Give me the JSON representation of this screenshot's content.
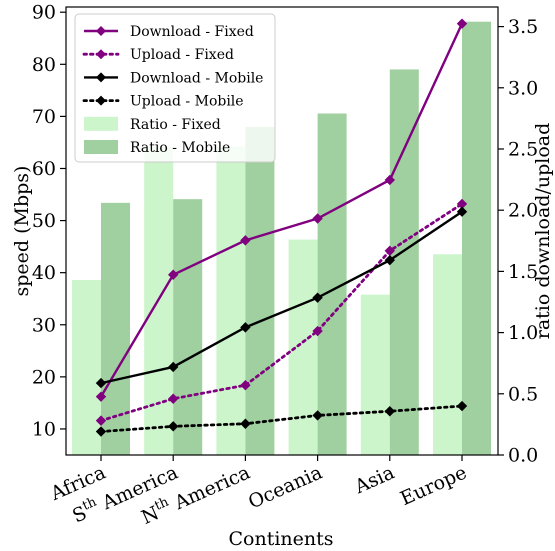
{
  "chart_data": {
    "type": "bar+line",
    "categories": [
      "Africa",
      "Sth America",
      "Nth America",
      "Oceania",
      "Asia",
      "Europe"
    ],
    "category_labels": [
      {
        "base": "Africa",
        "sup": ""
      },
      {
        "base": "S",
        "sup": "th",
        "rest": " America"
      },
      {
        "base": "N",
        "sup": "th",
        "rest": " America"
      },
      {
        "base": "Oceania",
        "sup": ""
      },
      {
        "base": "Asia",
        "sup": ""
      },
      {
        "base": "Europe",
        "sup": ""
      }
    ],
    "xlabel": "Continents",
    "ylabel": "speed (Mbps)",
    "y2label": "ratio download/upload",
    "ylim": [
      5,
      91
    ],
    "y2lim": [
      0,
      3.66
    ],
    "yticks": [
      10,
      20,
      30,
      40,
      50,
      60,
      70,
      80,
      90
    ],
    "y2ticks": [
      0.0,
      0.5,
      1.0,
      1.5,
      2.0,
      2.5,
      3.0,
      3.5
    ],
    "y2tick_labels": [
      "0.0",
      "0.5",
      "1.0",
      "1.5",
      "2.0",
      "2.5",
      "3.0",
      "3.5"
    ],
    "line_series": [
      {
        "name": "Download - Fixed",
        "values": [
          16.2,
          39.6,
          46.2,
          50.4,
          57.8,
          87.8
        ],
        "color": "#800080",
        "style": "solid"
      },
      {
        "name": "Upload - Fixed",
        "values": [
          11.6,
          15.8,
          18.4,
          28.8,
          44.2,
          53.2
        ],
        "color": "#800080",
        "style": "dotted"
      },
      {
        "name": "Download - Mobile",
        "values": [
          18.8,
          21.9,
          29.5,
          35.2,
          42.4,
          51.7
        ],
        "color": "#000000",
        "style": "solid"
      },
      {
        "name": "Upload - Mobile",
        "values": [
          9.5,
          10.5,
          11.0,
          12.6,
          13.4,
          14.4
        ],
        "color": "#000000",
        "style": "dotted"
      }
    ],
    "bar_series": [
      {
        "name": "Ratio - Fixed",
        "values": [
          1.43,
          2.52,
          2.52,
          1.76,
          1.31,
          1.64
        ],
        "color": "#ccf5cc"
      },
      {
        "name": "Ratio - Mobile",
        "values": [
          2.06,
          2.09,
          2.68,
          2.79,
          3.15,
          3.54
        ],
        "color": "#a0d0a0"
      }
    ],
    "legend_position": "top-left",
    "grid": false
  }
}
